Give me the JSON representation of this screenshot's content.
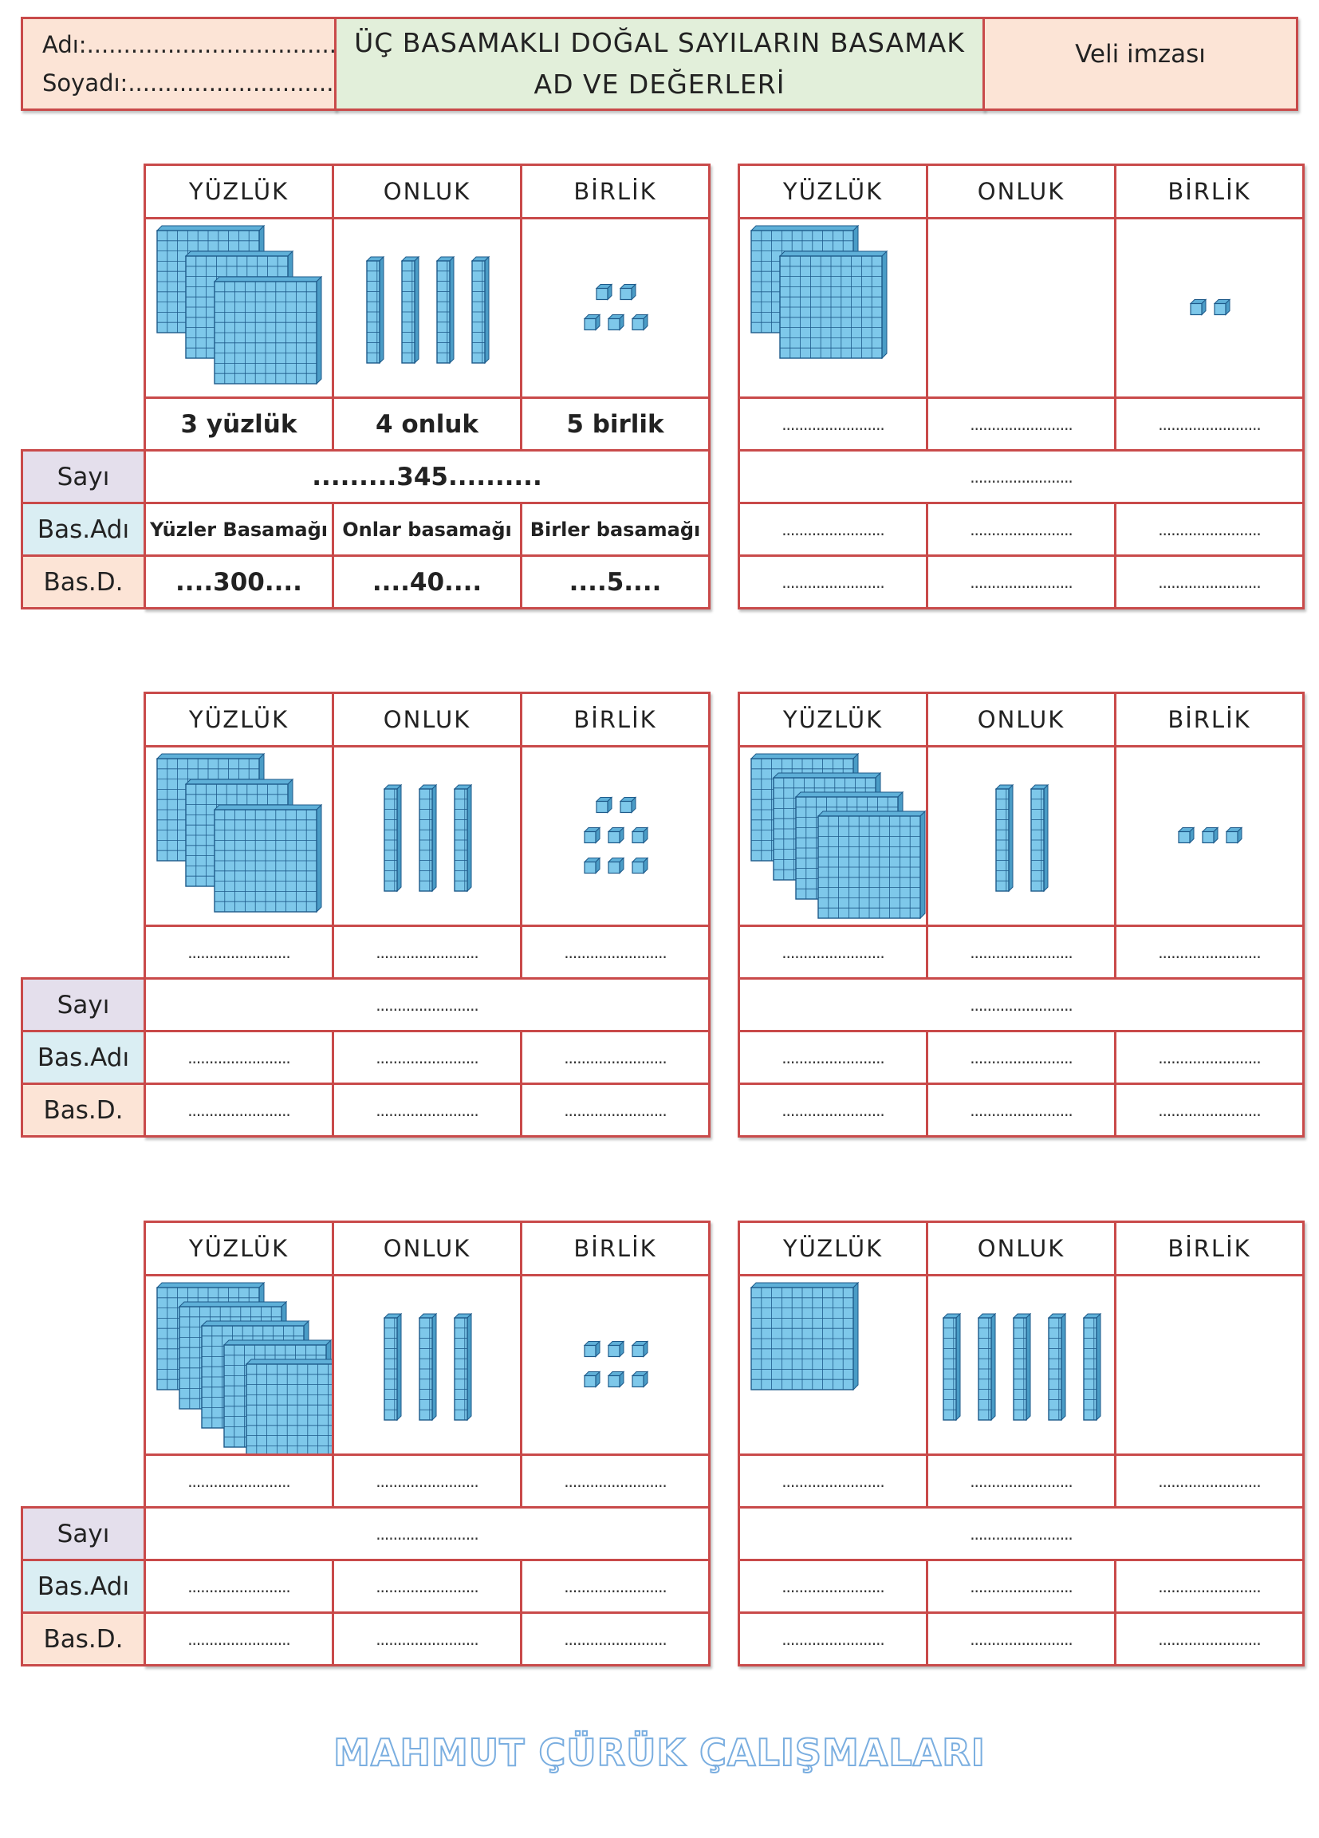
{
  "header": {
    "name_label": "Adı:.........................................",
    "surname_label": "Soyadı:.................................",
    "title_line1": "ÜÇ BASAMAKLI DOĞAL SAYILARIN BASAMAK",
    "title_line2": "AD VE DEĞERLERİ",
    "parent_signature": "Veli imzası"
  },
  "columns": [
    "YÜZLÜK",
    "ONLUK",
    "BİRLİK"
  ],
  "row_labels": {
    "number": "Sayı",
    "place_name": "Bas.Adı",
    "place_value": "Bas.D."
  },
  "blank": "........................",
  "example": {
    "counts": [
      "3 yüzlük",
      "4 onluk",
      "5 birlik"
    ],
    "number": ".........345..........",
    "place_names": [
      "Yüzler Basamağı",
      "Onlar basamağı",
      "Birler basamağı"
    ],
    "place_values": [
      "....300....",
      "....40....",
      "....5...."
    ]
  },
  "exercises": [
    {
      "hundreds": 3,
      "tens": 4,
      "ones": 5
    },
    {
      "hundreds": 2,
      "tens": 0,
      "ones": 2
    },
    {
      "hundreds": 3,
      "tens": 3,
      "ones": 8
    },
    {
      "hundreds": 4,
      "tens": 2,
      "ones": 3
    },
    {
      "hundreds": 5,
      "tens": 3,
      "ones": 6
    },
    {
      "hundreds": 1,
      "tens": 5,
      "ones": 0
    }
  ],
  "colors": {
    "border": "#c94a4a",
    "block_fill": "#7ec8ea",
    "block_line": "#1e5a8a"
  },
  "footer": "MAHMUT ÇÜRÜK ÇALIŞMALARI"
}
